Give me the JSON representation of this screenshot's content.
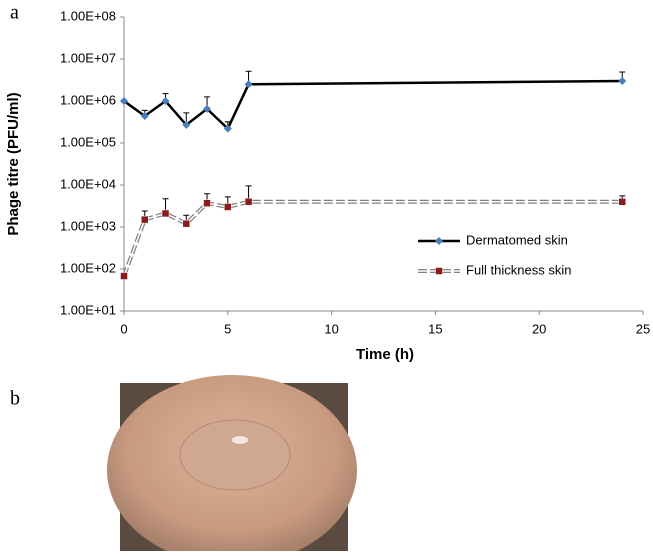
{
  "figure": {
    "panel_labels": [
      "a",
      "b"
    ]
  },
  "chart_data": {
    "type": "line",
    "y_label": "Phage titre (PFU/ml)",
    "x_label": "Time  (h)",
    "x": [
      0,
      1,
      2,
      3,
      4,
      5,
      6,
      24
    ],
    "log_y": true,
    "legend": "right",
    "series": [
      {
        "name": "Dermatomed skin",
        "color": "#000000",
        "marker_color": "#4a7ebb",
        "dashed": false,
        "values": [
          1000000,
          440000,
          1000000,
          270000,
          650000,
          220000,
          2500000,
          3000000
        ],
        "errors": [
          null,
          160000,
          500000,
          250000,
          600000,
          100000,
          2600000,
          1900000
        ]
      },
      {
        "name": "Full thickness skin",
        "color": "#808080",
        "marker_color": "#8b1a1a",
        "dashed": true,
        "values": [
          68,
          1500,
          2100,
          1200,
          3700,
          3000,
          4000,
          4000
        ],
        "errors": [
          null,
          900,
          2600,
          700,
          2500,
          2200,
          5500,
          1500
        ]
      }
    ],
    "xlim": [
      0,
      25
    ],
    "xticks": [
      0,
      5,
      10,
      15,
      20,
      25
    ],
    "ylim": [
      10,
      100000000
    ],
    "yticks": [
      {
        "value": 10,
        "label": "1.00E+01"
      },
      {
        "value": 100,
        "label": "1.00E+02"
      },
      {
        "value": 1000,
        "label": "1.00E+03"
      },
      {
        "value": 10000,
        "label": "1.00E+04"
      },
      {
        "value": 100000,
        "label": "1.00E+05"
      },
      {
        "value": 1000000,
        "label": "1.00E+06"
      },
      {
        "value": 10000000,
        "label": "1.00E+07"
      },
      {
        "value": 100000000,
        "label": "1.00E+08"
      }
    ]
  }
}
